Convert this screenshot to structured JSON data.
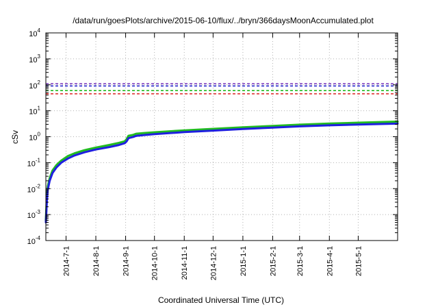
{
  "chart_data": {
    "type": "line",
    "title": "/data/run/goesPlots/archive/2015-06-10/flux/../bryn/366daysMoonAccumulated.plot",
    "xlabel": "Coordinated Universal Time (UTC)",
    "ylabel": "cSv",
    "y_scale": "log",
    "ylim": [
      0.0001,
      10000
    ],
    "y_ticks": [
      {
        "value": 0.0001,
        "base": "10",
        "exp": "-4"
      },
      {
        "value": 0.001,
        "base": "10",
        "exp": "-3"
      },
      {
        "value": 0.01,
        "base": "10",
        "exp": "-2"
      },
      {
        "value": 0.1,
        "base": "10",
        "exp": "-1"
      },
      {
        "value": 1,
        "base": "10",
        "exp": "0"
      },
      {
        "value": 10,
        "base": "10",
        "exp": "1"
      },
      {
        "value": 100,
        "base": "10",
        "exp": "2"
      },
      {
        "value": 1000,
        "base": "10",
        "exp": "3"
      },
      {
        "value": 10000,
        "base": "10",
        "exp": "4"
      }
    ],
    "xlim": [
      "2014-06-10",
      "2015-06-11"
    ],
    "x_ticks": [
      {
        "label": "2014-7-1",
        "date": "2014-07-01"
      },
      {
        "label": "2014-8-1",
        "date": "2014-08-01"
      },
      {
        "label": "2014-9-1",
        "date": "2014-09-01"
      },
      {
        "label": "2014-10-1",
        "date": "2014-10-01"
      },
      {
        "label": "2014-11-1",
        "date": "2014-11-01"
      },
      {
        "label": "2014-12-1",
        "date": "2014-12-01"
      },
      {
        "label": "2015-1-1",
        "date": "2015-01-01"
      },
      {
        "label": "2015-2-1",
        "date": "2015-02-01"
      },
      {
        "label": "2015-3-1",
        "date": "2015-03-01"
      },
      {
        "label": "2015-4-1",
        "date": "2015-04-01"
      },
      {
        "label": "2015-5-1",
        "date": "2015-05-01"
      }
    ],
    "grid": true,
    "series": [
      {
        "color": "#22bb22",
        "dates": [
          "2014-06-10",
          "2014-06-11",
          "2014-06-12",
          "2014-06-14",
          "2014-06-17",
          "2014-06-21",
          "2014-06-26",
          "2014-07-03",
          "2014-07-10",
          "2014-07-20",
          "2014-08-01",
          "2014-08-15",
          "2014-08-25",
          "2014-08-31",
          "2014-09-02",
          "2014-09-04",
          "2014-09-09",
          "2014-09-12",
          "2014-09-20",
          "2014-10-01",
          "2014-10-15",
          "2014-11-01",
          "2014-12-01",
          "2015-01-01",
          "2015-02-01",
          "2015-03-01",
          "2015-04-01",
          "2015-05-01",
          "2015-06-11"
        ],
        "values": [
          0.0006,
          0.004,
          0.012,
          0.025,
          0.05,
          0.08,
          0.12,
          0.18,
          0.23,
          0.3,
          0.38,
          0.48,
          0.58,
          0.66,
          0.8,
          1.08,
          1.18,
          1.3,
          1.38,
          1.48,
          1.6,
          1.75,
          2.0,
          2.3,
          2.6,
          2.9,
          3.2,
          3.45,
          3.8
        ]
      },
      {
        "color": "#1f1fe0",
        "dates": [
          "2014-06-10",
          "2014-06-11",
          "2014-06-12",
          "2014-06-14",
          "2014-06-17",
          "2014-06-21",
          "2014-06-26",
          "2014-07-03",
          "2014-07-10",
          "2014-07-20",
          "2014-08-01",
          "2014-08-15",
          "2014-08-25",
          "2014-08-31",
          "2014-09-02",
          "2014-09-04",
          "2014-09-09",
          "2014-09-12",
          "2014-09-20",
          "2014-10-01",
          "2014-10-15",
          "2014-11-01",
          "2014-12-01",
          "2015-01-01",
          "2015-02-01",
          "2015-03-01",
          "2015-04-01",
          "2015-05-01",
          "2015-06-11"
        ],
        "values": [
          0.0005,
          0.003,
          0.009,
          0.02,
          0.04,
          0.065,
          0.1,
          0.145,
          0.19,
          0.25,
          0.32,
          0.4,
          0.48,
          0.56,
          0.66,
          0.88,
          0.98,
          1.08,
          1.16,
          1.25,
          1.36,
          1.5,
          1.72,
          1.98,
          2.25,
          2.5,
          2.75,
          2.95,
          3.2
        ]
      }
    ],
    "reference_lines": [
      {
        "value": 110,
        "color": "#7f3fbf",
        "dash": true
      },
      {
        "value": 90,
        "color": "#2222cc",
        "dash": true
      },
      {
        "value": 60,
        "color": "#22bb22",
        "dash": true
      },
      {
        "value": 45,
        "color": "#dd2222",
        "dash": true
      }
    ]
  }
}
